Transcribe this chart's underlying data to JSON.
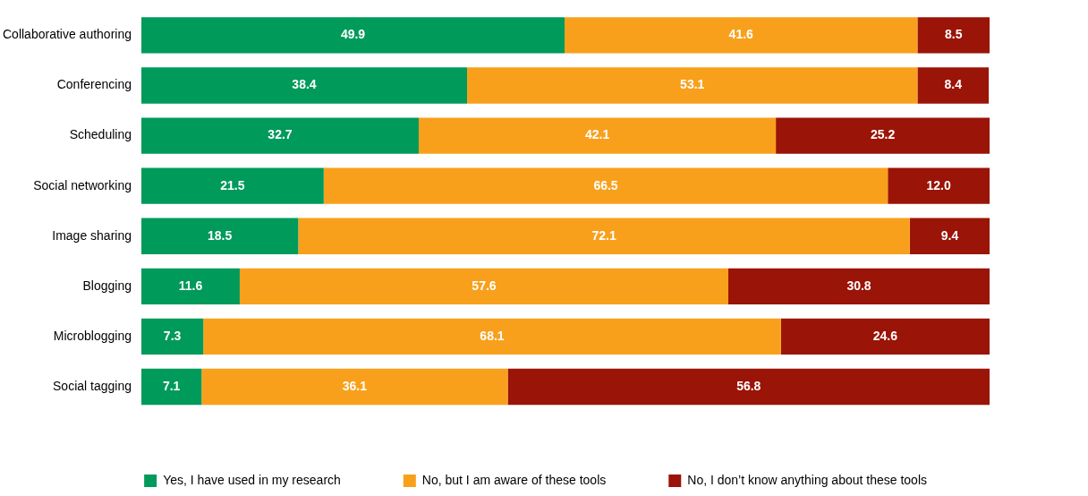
{
  "chart_data": {
    "type": "bar",
    "orientation": "horizontal",
    "stacked": true,
    "legend": "bottom",
    "categories": [
      "Collaborative authoring",
      "Conferencing",
      "Scheduling",
      "Social networking",
      "Image sharing",
      "Blogging",
      "Microblogging",
      "Social tagging"
    ],
    "series": [
      {
        "name": "Yes, I have used in my research",
        "color": "#009a5b",
        "values": [
          49.9,
          38.4,
          32.7,
          21.5,
          18.5,
          11.6,
          7.3,
          7.1
        ],
        "value_labels": [
          "49.9",
          "38.4",
          "32.7",
          "21.5",
          "18.5",
          "11.6",
          "7.3",
          "7.1"
        ]
      },
      {
        "name": "No, but I am aware of these tools",
        "color": "#f8a01c",
        "values": [
          41.6,
          53.1,
          42.1,
          66.5,
          72.1,
          57.6,
          68.1,
          36.1
        ],
        "value_labels": [
          "41.6",
          "53.1",
          "42.1",
          "66.5",
          "72.1",
          "57.6",
          "68.1",
          "36.1"
        ]
      },
      {
        "name": "No, I don’t know anything about these tools",
        "color": "#9a1407",
        "values": [
          8.5,
          8.4,
          25.2,
          12.0,
          9.4,
          30.8,
          24.6,
          56.8
        ],
        "value_labels": [
          "8.5",
          "8.4",
          "25.2",
          "12.0",
          "9.4",
          "30.8",
          "24.6",
          "56.8"
        ]
      }
    ]
  }
}
